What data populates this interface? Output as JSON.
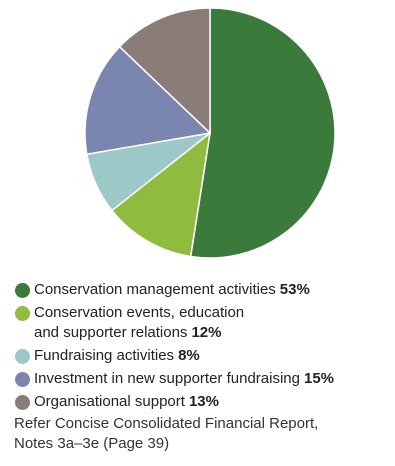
{
  "chart_data": {
    "type": "pie",
    "slices": [
      {
        "label": "Conservation management activities",
        "value": 53,
        "display": "53%",
        "color": "#3a7a3a"
      },
      {
        "label": "Conservation events, education and supporter relations",
        "value": 12,
        "display": "12%",
        "color": "#8fbb3f"
      },
      {
        "label": "Fundraising activities",
        "value": 8,
        "display": "8%",
        "color": "#9cc8c8"
      },
      {
        "label": "Investment in new supporter fundraising",
        "value": 15,
        "display": "15%",
        "color": "#7b86b0"
      },
      {
        "label": "Organisational support",
        "value": 13,
        "display": "13%",
        "color": "#8a7c78"
      }
    ],
    "start": "12 o'clock",
    "direction": "clockwise",
    "legend_position": "bottom"
  },
  "legend_lines": {
    "item_1": "Conservation events, education",
    "item_1_cont": "and supporter relations"
  },
  "footnote": {
    "line1": "Refer Concise Consolidated Financial Report,",
    "line2": "Notes 3a–3e (Page 39)"
  }
}
